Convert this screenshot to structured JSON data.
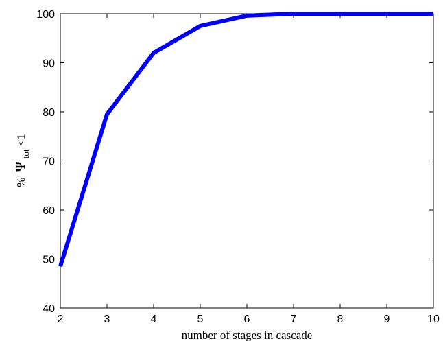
{
  "chart_data": {
    "type": "line",
    "xlabel": "number of stages in cascade",
    "ylabel": {
      "prefix": "%",
      "symbol": "Ψ",
      "subscript": "tot",
      "suffix": "<1"
    },
    "xlim": [
      2,
      10
    ],
    "ylim": [
      40,
      100
    ],
    "xticks": [
      "2",
      "3",
      "4",
      "5",
      "6",
      "7",
      "8",
      "9",
      "10"
    ],
    "yticks": [
      "40",
      "50",
      "60",
      "70",
      "80",
      "90",
      "100"
    ],
    "grid": false,
    "series": [
      {
        "color": "#0000ff",
        "x": [
          2,
          3,
          4,
          5,
          6,
          7,
          8,
          9,
          10
        ],
        "y": [
          48.5,
          79.5,
          92,
          97.5,
          99.6,
          100,
          100,
          100,
          100
        ]
      }
    ]
  }
}
